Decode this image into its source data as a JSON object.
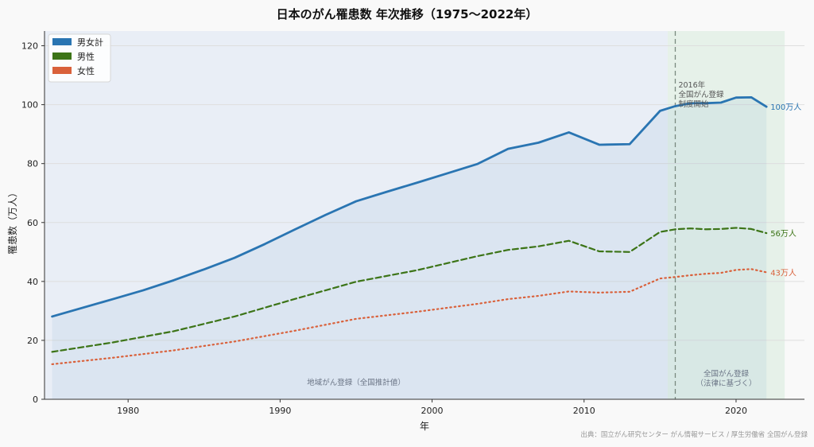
{
  "chart_data": {
    "type": "line",
    "title": "日本のがん罹患数 年次推移（1975〜2022年）",
    "xlabel": "年",
    "ylabel": "罹患数（万人）",
    "xlim": [
      1974.5,
      2024.5
    ],
    "ylim": [
      0,
      125
    ],
    "xticks": [
      1980,
      1990,
      2000,
      2010,
      2020
    ],
    "yticks": [
      0,
      20,
      40,
      60,
      80,
      100,
      120
    ],
    "grid": "horizontal",
    "legend_position": "top-left",
    "series": [
      {
        "name": "男女計",
        "color": "#2a75b2",
        "style": "solid",
        "fill": true,
        "end_label": "100万人",
        "x": [
          1975,
          1979,
          1981,
          1983,
          1985,
          1987,
          1989,
          1991,
          1993,
          1995,
          1997,
          1999,
          2001,
          2003,
          2005,
          2007,
          2009,
          2011,
          2013,
          2015,
          2016,
          2017,
          2018,
          2019,
          2020,
          2021,
          2022
        ],
        "values": [
          28.1,
          34.0,
          37.0,
          40.4,
          44.1,
          48.0,
          52.7,
          57.7,
          62.6,
          67.2,
          70.4,
          73.5,
          76.7,
          79.9,
          85.0,
          87.1,
          90.6,
          86.4,
          86.6,
          97.9,
          99.5,
          100.5,
          100.5,
          100.7,
          102.4,
          102.5,
          99.3
        ]
      },
      {
        "name": "男性",
        "color": "#3c7417",
        "style": "dashed",
        "end_label": "56万人",
        "x": [
          1975,
          1979,
          1983,
          1987,
          1991,
          1995,
          1999,
          2003,
          2005,
          2007,
          2009,
          2011,
          2013,
          2015,
          2016,
          2017,
          2018,
          2019,
          2020,
          2021,
          2022
        ],
        "values": [
          16.1,
          19.3,
          23.1,
          28.1,
          34.1,
          39.9,
          43.8,
          48.6,
          50.7,
          51.9,
          53.8,
          50.2,
          50.0,
          56.8,
          57.7,
          58.0,
          57.7,
          57.8,
          58.2,
          57.8,
          56.4
        ]
      },
      {
        "name": "女性",
        "color": "#d9613b",
        "style": "dotted",
        "end_label": "43万人",
        "x": [
          1975,
          1979,
          1983,
          1987,
          1991,
          1995,
          1999,
          2003,
          2005,
          2007,
          2009,
          2011,
          2013,
          2015,
          2016,
          2017,
          2018,
          2019,
          2020,
          2021,
          2022
        ],
        "values": [
          11.9,
          14.1,
          16.6,
          19.6,
          23.3,
          27.3,
          29.7,
          32.4,
          34.0,
          35.1,
          36.6,
          36.2,
          36.5,
          41.0,
          41.5,
          42.1,
          42.6,
          42.9,
          43.9,
          44.2,
          43.1
        ]
      }
    ],
    "regions": [
      {
        "x_start": 1974.5,
        "x_end": 2015.5,
        "label": "地域がん登録（全国推計値）",
        "color": "#e9eef6"
      },
      {
        "x_start": 2015.5,
        "x_end": 2023.2,
        "label": "全国がん登録\n（法律に基づく）",
        "color": "#e6f1e9"
      }
    ],
    "vline": {
      "x": 2016,
      "label": "2016年\n全国がん登録\n制度開始"
    },
    "source": "出典：国立がん研究センター がん情報サービス / 厚生労働省 全国がん登録"
  }
}
